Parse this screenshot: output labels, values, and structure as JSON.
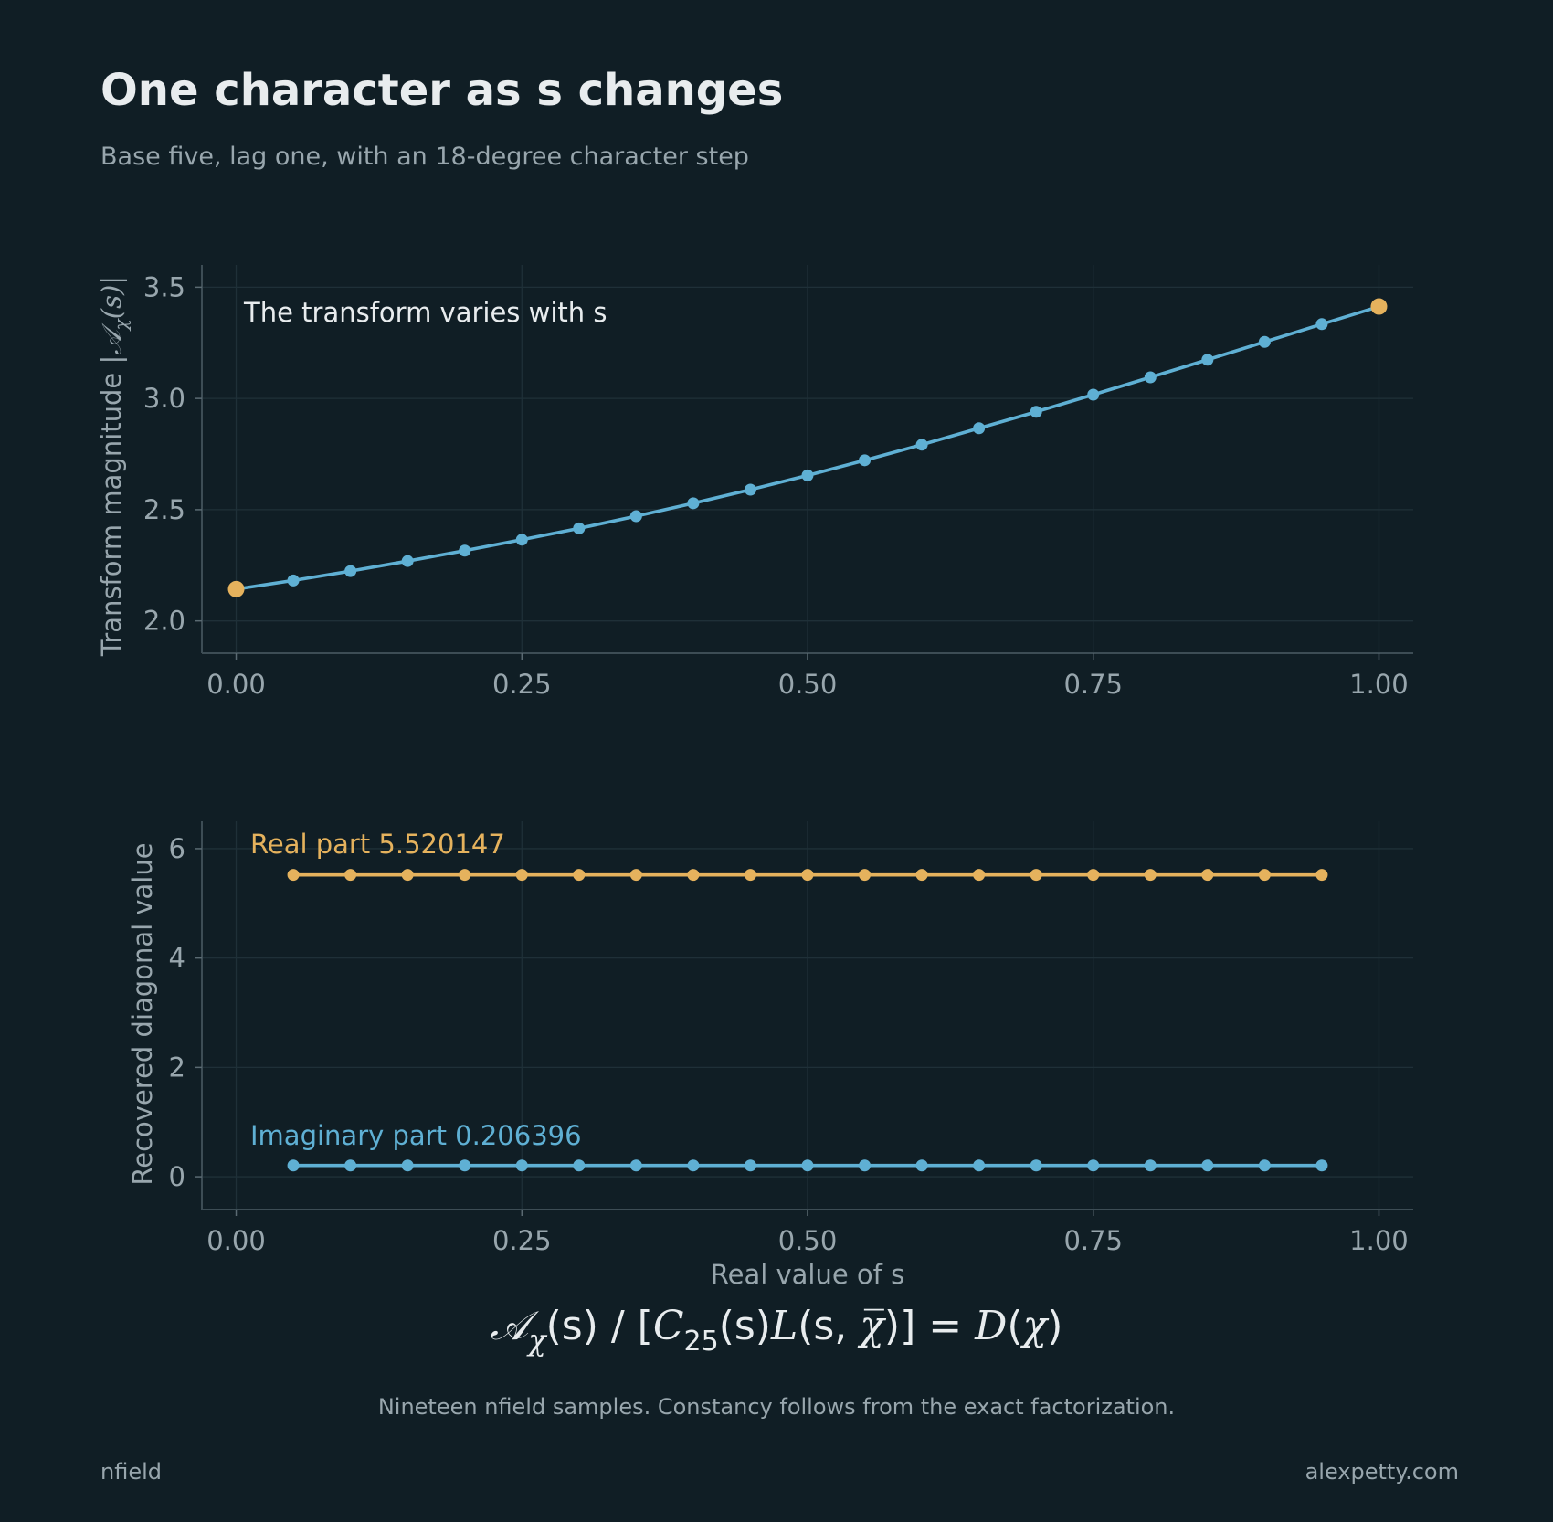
{
  "header": {
    "title": "One character as s changes",
    "subtitle": "Base five, lag one, with an 18-degree character step"
  },
  "colors": {
    "background": "#101e25",
    "blue": "#5fb0d4",
    "gold": "#e5b25d",
    "text": "#e8ecee",
    "muted": "#98a6ad",
    "grid": "#1f3038"
  },
  "formula": {
    "A": "𝒜",
    "chi": "χ",
    "sub25": "25",
    "chibar": "χ̅",
    "mid1": "(s) / [",
    "C": "C",
    "mid2": "(s)",
    "L": "L",
    "mid3": "(s, ",
    "mid4": ")] = ",
    "D": "D",
    "mid5": "(",
    "end": ")"
  },
  "ylabel_top": {
    "text": "Transform magnitude |",
    "A": "𝒜",
    "chi": "χ",
    "s_part": "(s)|"
  },
  "footnote": "Nineteen nfield samples. Constancy follows from the exact factorization.",
  "footer": {
    "left": "nfield",
    "right": "alexpetty.com"
  },
  "chart_data": [
    {
      "type": "line",
      "title": "",
      "annotation": "The transform varies with s",
      "xlabel": "",
      "ylabel": "Transform magnitude |𝒜χ(s)|",
      "xlim": [
        -0.03,
        1.03
      ],
      "ylim": [
        1.855,
        3.6
      ],
      "x_ticks": [
        0.0,
        0.25,
        0.5,
        0.75,
        1.0
      ],
      "x_tick_labels": [
        "0.00",
        "0.25",
        "0.50",
        "0.75",
        "1.00"
      ],
      "y_ticks": [
        2.0,
        2.5,
        3.0,
        3.5
      ],
      "y_tick_labels": [
        "2.0",
        "2.5",
        "3.0",
        "3.5"
      ],
      "grid": true,
      "series": [
        {
          "color": "#5fb0d4",
          "x": [
            0.0,
            0.05,
            0.1,
            0.15,
            0.2,
            0.25,
            0.3,
            0.35,
            0.4,
            0.45,
            0.5,
            0.55,
            0.6,
            0.65,
            0.7,
            0.75,
            0.8,
            0.85,
            0.9,
            0.95,
            1.0
          ],
          "y": [
            2.143,
            2.182,
            2.224,
            2.269,
            2.316,
            2.365,
            2.416,
            2.471,
            2.529,
            2.59,
            2.654,
            2.722,
            2.792,
            2.866,
            2.94,
            3.017,
            3.095,
            3.174,
            3.254,
            3.334,
            3.413
          ],
          "endpoint_color": "#e5b25d"
        }
      ]
    },
    {
      "type": "line",
      "title": "",
      "xlabel": "Real value of s",
      "ylabel": "Recovered diagonal value",
      "xlim": [
        -0.03,
        1.03
      ],
      "ylim": [
        -0.6,
        6.5
      ],
      "x_ticks": [
        0.0,
        0.25,
        0.5,
        0.75,
        1.0
      ],
      "x_tick_labels": [
        "0.00",
        "0.25",
        "0.50",
        "0.75",
        "1.00"
      ],
      "y_ticks": [
        0,
        2,
        4,
        6
      ],
      "y_tick_labels": [
        "0",
        "2",
        "4",
        "6"
      ],
      "grid": true,
      "series": [
        {
          "name": "Real part",
          "label": "Real part  5.520147",
          "color": "#e5b25d",
          "x": [
            0.05,
            0.1,
            0.15,
            0.2,
            0.25,
            0.3,
            0.35,
            0.4,
            0.45,
            0.5,
            0.55,
            0.6,
            0.65,
            0.7,
            0.75,
            0.8,
            0.85,
            0.9,
            0.95
          ],
          "y": [
            5.520147,
            5.520147,
            5.520147,
            5.520147,
            5.520147,
            5.520147,
            5.520147,
            5.520147,
            5.520147,
            5.520147,
            5.520147,
            5.520147,
            5.520147,
            5.520147,
            5.520147,
            5.520147,
            5.520147,
            5.520147,
            5.520147
          ]
        },
        {
          "name": "Imaginary part",
          "label": "Imaginary part  0.206396",
          "color": "#5fb0d4",
          "x": [
            0.05,
            0.1,
            0.15,
            0.2,
            0.25,
            0.3,
            0.35,
            0.4,
            0.45,
            0.5,
            0.55,
            0.6,
            0.65,
            0.7,
            0.75,
            0.8,
            0.85,
            0.9,
            0.95
          ],
          "y": [
            0.206396,
            0.206396,
            0.206396,
            0.206396,
            0.206396,
            0.206396,
            0.206396,
            0.206396,
            0.206396,
            0.206396,
            0.206396,
            0.206396,
            0.206396,
            0.206396,
            0.206396,
            0.206396,
            0.206396,
            0.206396,
            0.206396
          ]
        }
      ]
    }
  ]
}
